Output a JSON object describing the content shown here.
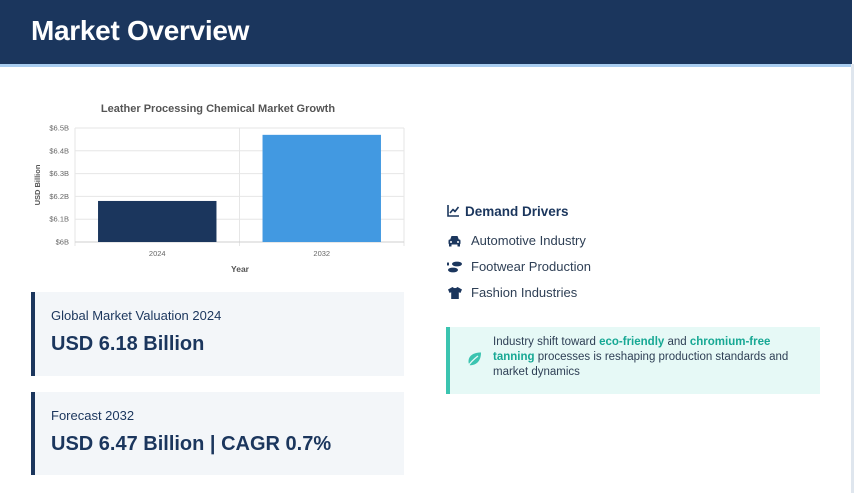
{
  "header": {
    "title": "Market Overview"
  },
  "chart_data": {
    "type": "bar",
    "title": "Leather Processing Chemical Market Growth",
    "categories": [
      "2024",
      "2032"
    ],
    "values": [
      6.18,
      6.47
    ],
    "colors": [
      "#1b365d",
      "#4299e1"
    ],
    "xlabel": "Year",
    "ylabel": "USD Billion",
    "ylim": [
      6.0,
      6.5
    ],
    "yticks": [
      {
        "value": 6.0,
        "label": "$6B"
      },
      {
        "value": 6.1,
        "label": "$6.1B"
      },
      {
        "value": 6.2,
        "label": "$6.2B"
      },
      {
        "value": 6.3,
        "label": "$6.3B"
      },
      {
        "value": 6.4,
        "label": "$6.4B"
      },
      {
        "value": 6.5,
        "label": "$6.5B"
      }
    ],
    "grid": true,
    "legend": "none"
  },
  "stats": {
    "valuation": {
      "label": "Global Market Valuation 2024",
      "value": "USD 6.18 Billion"
    },
    "forecast": {
      "label": "Forecast 2032",
      "value": "USD 6.47 Billion | CAGR 0.7%"
    }
  },
  "drivers": {
    "title": "Demand Drivers",
    "title_icon": "chart-line-icon",
    "items": [
      {
        "label": "Automotive Industry",
        "icon": "car-icon"
      },
      {
        "label": "Footwear Production",
        "icon": "shoe-prints-icon"
      },
      {
        "label": "Fashion Industries",
        "icon": "tshirt-icon"
      }
    ]
  },
  "note": {
    "icon": "leaf-icon",
    "text_1": "Industry shift toward ",
    "highlight_1": "eco-friendly",
    "text_2": " and ",
    "highlight_2": "chromium-free tanning",
    "text_3": " processes is reshaping production standards and market dynamics",
    "accent_color": "#3bc4b0"
  }
}
